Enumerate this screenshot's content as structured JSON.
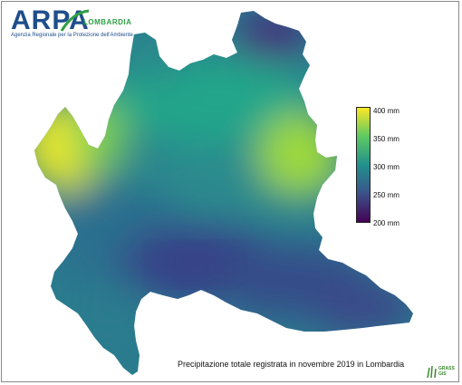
{
  "logo": {
    "word": "ARPA",
    "region": "LOMBARDIA",
    "subtitle": "Agenzia Regionale per la Protezione dell'Ambiente"
  },
  "map": {
    "caption": "Precipitazione totale registrata in novembre 2019 in Lombardia",
    "colormap": [
      "#440154",
      "#3b528b",
      "#21918c",
      "#5ec962",
      "#fde725"
    ]
  },
  "legend": {
    "labels": [
      "400 mm",
      "350 mm",
      "300 mm",
      "250 mm",
      "200 mm"
    ],
    "values": [
      400,
      350,
      300,
      250,
      200
    ]
  },
  "grass": {
    "line1": "GRASS",
    "line2": "GIS"
  }
}
